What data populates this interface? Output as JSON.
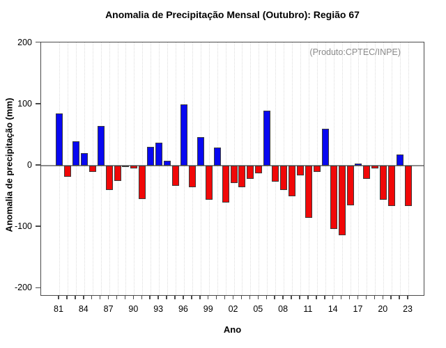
{
  "chart_data": {
    "type": "bar",
    "title": "Anomalia de Precipitação Mensal (Outubro): Região 67",
    "xlabel": "Ano",
    "ylabel": "Anomalia de precipitação (mm)",
    "annotation": "(Produto:CPTEC/INPE)",
    "years": [
      1981,
      1982,
      1983,
      1984,
      1985,
      1986,
      1987,
      1988,
      1989,
      1990,
      1991,
      1992,
      1993,
      1994,
      1995,
      1996,
      1997,
      1998,
      1999,
      2000,
      2001,
      2002,
      2003,
      2004,
      2005,
      2006,
      2007,
      2008,
      2009,
      2010,
      2011,
      2012,
      2013,
      2014,
      2015,
      2016,
      2017,
      2018,
      2019,
      2020,
      2021,
      2022,
      2023
    ],
    "values": [
      85,
      -18,
      40,
      20,
      -10,
      65,
      -40,
      -25,
      -2,
      -5,
      -55,
      31,
      37,
      8,
      -33,
      100,
      -35,
      46,
      -56,
      29,
      -60,
      -28,
      -35,
      -22,
      -12,
      90,
      -26,
      -40,
      -50,
      -16,
      -85,
      -10,
      60,
      -103,
      -113,
      -65,
      3,
      -22,
      -4,
      -56,
      -66,
      18,
      -66
    ],
    "ylim": [
      -200,
      200
    ],
    "yticks": [
      200,
      100,
      0,
      -100,
      -200
    ],
    "ytick_labels": [
      "200",
      "100",
      "0",
      "-100",
      "-200"
    ],
    "xtick_labels": [
      "81",
      "84",
      "87",
      "90",
      "93",
      "96",
      "99",
      "02",
      "05",
      "08",
      "11",
      "14",
      "17",
      "20",
      "23"
    ],
    "xtick_step_years": 3,
    "grid": "vertical-dotted",
    "legend": "none",
    "positive_color": "#0808f0",
    "negative_color": "#f00808"
  }
}
